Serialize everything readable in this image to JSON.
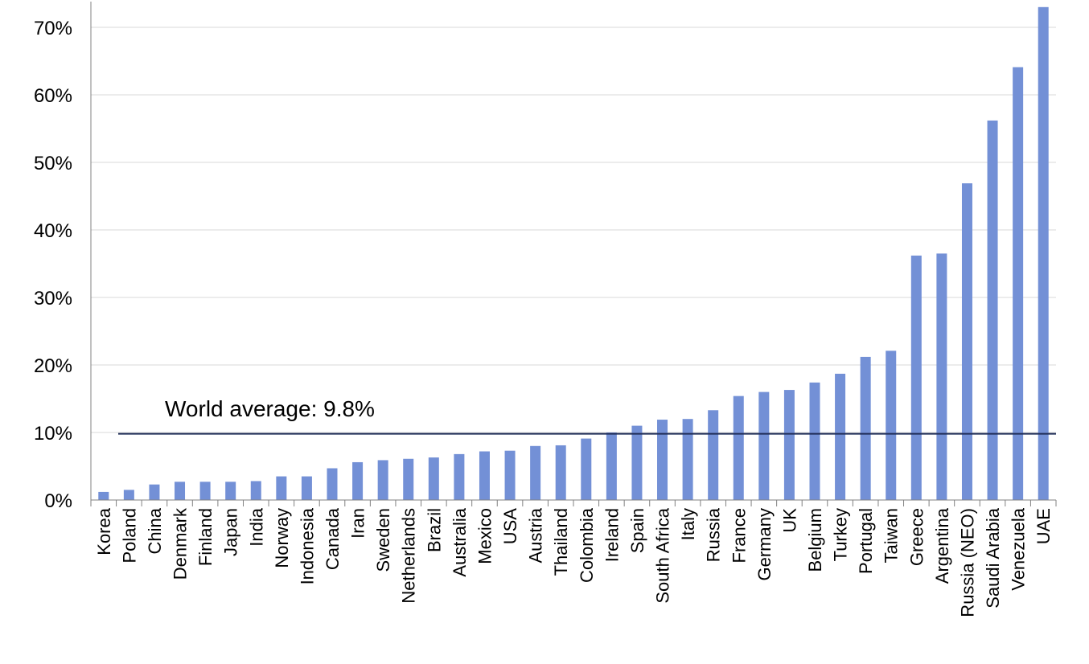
{
  "chart_data": {
    "type": "bar",
    "title": "",
    "xlabel": "",
    "ylabel": "",
    "ylim": [
      0,
      0.7
    ],
    "grid": true,
    "ytick_values": [
      0,
      0.1,
      0.2,
      0.3,
      0.4,
      0.5,
      0.6,
      0.7
    ],
    "ytick_labels": [
      "0%",
      "10%",
      "20%",
      "30%",
      "40%",
      "50%",
      "60%",
      "70%"
    ],
    "categories": [
      "Korea",
      "Poland",
      "China",
      "Denmark",
      "Finland",
      "Japan",
      "India",
      "Norway",
      "Indonesia",
      "Canada",
      "Iran",
      "Sweden",
      "Netherlands",
      "Brazil",
      "Australia",
      "Mexico",
      "USA",
      "Austria",
      "Thailand",
      "Colombia",
      "Ireland",
      "Spain",
      "South Africa",
      "Italy",
      "Russia",
      "France",
      "Germany",
      "UK",
      "Belgium",
      "Turkey",
      "Portugal",
      "Taiwan",
      "Greece",
      "Argentina",
      "Russia (NEO)",
      "Saudi Arabia",
      "Venezuela",
      "UAE"
    ],
    "values": [
      0.012,
      0.015,
      0.023,
      0.027,
      0.027,
      0.027,
      0.028,
      0.035,
      0.035,
      0.047,
      0.056,
      0.059,
      0.061,
      0.063,
      0.068,
      0.072,
      0.073,
      0.08,
      0.081,
      0.091,
      0.1,
      0.11,
      0.119,
      0.12,
      0.133,
      0.154,
      0.16,
      0.163,
      0.174,
      0.187,
      0.212,
      0.221,
      0.362,
      0.365,
      0.469,
      0.562,
      0.641,
      0.73
    ],
    "bar_color": "#7390d6",
    "reference_line": {
      "value": 0.098,
      "label": "World average: 9.8%",
      "color": "#1f2d57"
    }
  }
}
